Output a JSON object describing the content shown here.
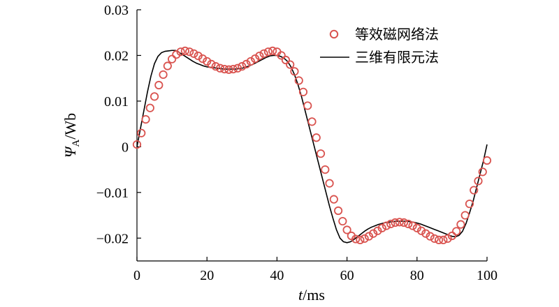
{
  "chart_data": {
    "type": "line",
    "x_ticks": [
      0,
      20,
      40,
      60,
      80,
      100
    ],
    "y_ticks": [
      0.03,
      0.02,
      0.01,
      0,
      -0.01,
      -0.02
    ],
    "y_tick_labels": [
      "0.03",
      "0.02",
      "0.01",
      "0",
      "−0.01",
      "−0.02"
    ],
    "x_tick_labels": [
      "0",
      "20",
      "40",
      "60",
      "80",
      "100"
    ],
    "xlim": [
      0,
      100
    ],
    "ylim": [
      -0.025,
      0.03
    ],
    "xlabel": {
      "var": "t",
      "unit": "/ms"
    },
    "ylabel": {
      "var": "Ψ",
      "sub": "A",
      "unit": "/Wb"
    },
    "legend_position": "top-right",
    "colors": {
      "markers": "#d9534f",
      "line": "#000000"
    },
    "series": [
      {
        "name": "等效磁网络法",
        "kind": "markers",
        "x": [
          0,
          1.25,
          2.5,
          3.75,
          5,
          6.25,
          7.5,
          8.75,
          10,
          11.25,
          12.5,
          13.75,
          15,
          16.25,
          17.5,
          18.75,
          20,
          21.25,
          22.5,
          23.75,
          25,
          26.25,
          27.5,
          28.75,
          30,
          31.25,
          32.5,
          33.75,
          35,
          36.25,
          37.5,
          38.75,
          40,
          41.25,
          42.5,
          43.75,
          45,
          46.25,
          47.5,
          48.75,
          50,
          51.25,
          52.5,
          53.75,
          55,
          56.25,
          57.5,
          58.75,
          60,
          61.25,
          62.5,
          63.75,
          65,
          66.25,
          67.5,
          68.75,
          70,
          71.25,
          72.5,
          73.75,
          75,
          76.25,
          77.5,
          78.75,
          80,
          81.25,
          82.5,
          83.75,
          85,
          86.25,
          87.5,
          88.75,
          90,
          91.25,
          92.5,
          93.75,
          95,
          96.25,
          97.5,
          98.75,
          100
        ],
        "y": [
          0.0005,
          0.003,
          0.006,
          0.0085,
          0.011,
          0.0135,
          0.0158,
          0.0177,
          0.0192,
          0.0202,
          0.0208,
          0.021,
          0.0208,
          0.0204,
          0.0199,
          0.0193,
          0.0187,
          0.0181,
          0.0176,
          0.0172,
          0.017,
          0.0169,
          0.017,
          0.0172,
          0.0176,
          0.0181,
          0.0187,
          0.0193,
          0.0199,
          0.0204,
          0.0208,
          0.021,
          0.0208,
          0.02,
          0.019,
          0.018,
          0.0165,
          0.0145,
          0.012,
          0.009,
          0.0055,
          0.002,
          -0.0015,
          -0.005,
          -0.008,
          -0.0115,
          -0.014,
          -0.0163,
          -0.0182,
          -0.0195,
          -0.0202,
          -0.0204,
          -0.0201,
          -0.0196,
          -0.019,
          -0.0184,
          -0.0178,
          -0.0173,
          -0.0169,
          -0.0166,
          -0.0165,
          -0.0166,
          -0.0169,
          -0.0173,
          -0.0178,
          -0.0184,
          -0.019,
          -0.0196,
          -0.0201,
          -0.0204,
          -0.0204,
          -0.0201,
          -0.0195,
          -0.0185,
          -0.017,
          -0.015,
          -0.0125,
          -0.0095,
          -0.0075,
          -0.0055,
          -0.003
        ]
      },
      {
        "name": "三维有限元法",
        "kind": "line",
        "x": [
          0,
          1,
          2,
          3,
          4,
          5,
          6,
          7,
          8,
          9,
          10,
          11,
          12,
          13,
          14,
          15,
          16,
          17,
          18,
          19,
          20,
          21,
          22,
          23,
          24,
          25,
          26,
          27,
          28,
          29,
          30,
          31,
          32,
          33,
          34,
          35,
          36,
          37,
          38,
          39,
          40,
          41,
          42,
          43,
          44,
          45,
          46,
          47,
          48,
          49,
          50,
          51,
          52,
          53,
          54,
          55,
          56,
          57,
          58,
          59,
          60,
          61,
          62,
          63,
          64,
          65,
          66,
          67,
          68,
          69,
          70,
          71,
          72,
          73,
          74,
          75,
          76,
          77,
          78,
          79,
          80,
          81,
          82,
          83,
          84,
          85,
          86,
          87,
          88,
          89,
          90,
          91,
          92,
          93,
          94,
          95,
          96,
          97,
          98,
          99,
          100
        ],
        "y": [
          0,
          0.004,
          0.008,
          0.012,
          0.0155,
          0.0182,
          0.0198,
          0.0206,
          0.0209,
          0.021,
          0.0211,
          0.0211,
          0.0207,
          0.0202,
          0.0197,
          0.0192,
          0.0187,
          0.0183,
          0.018,
          0.0177,
          0.0175,
          0.0174,
          0.0173,
          0.0172,
          0.0171,
          0.017,
          0.017,
          0.017,
          0.017,
          0.0171,
          0.0172,
          0.0174,
          0.0177,
          0.018,
          0.0184,
          0.0188,
          0.0192,
          0.0196,
          0.0199,
          0.02,
          0.02,
          0.0198,
          0.0194,
          0.0187,
          0.0175,
          0.0158,
          0.0136,
          0.011,
          0.008,
          0.005,
          0.002,
          -0.001,
          -0.004,
          -0.007,
          -0.01,
          -0.013,
          -0.0157,
          -0.0182,
          -0.02,
          -0.0208,
          -0.021,
          -0.0208,
          -0.0203,
          -0.0197,
          -0.0191,
          -0.0185,
          -0.018,
          -0.0176,
          -0.0173,
          -0.017,
          -0.0168,
          -0.0166,
          -0.0165,
          -0.0164,
          -0.0163,
          -0.0163,
          -0.0163,
          -0.0163,
          -0.0164,
          -0.0165,
          -0.0167,
          -0.0169,
          -0.0172,
          -0.0175,
          -0.0178,
          -0.0181,
          -0.0184,
          -0.0187,
          -0.019,
          -0.0193,
          -0.0196,
          -0.0197,
          -0.0194,
          -0.0185,
          -0.0168,
          -0.0145,
          -0.012,
          -0.009,
          -0.006,
          -0.003,
          0.0005
        ]
      }
    ]
  }
}
